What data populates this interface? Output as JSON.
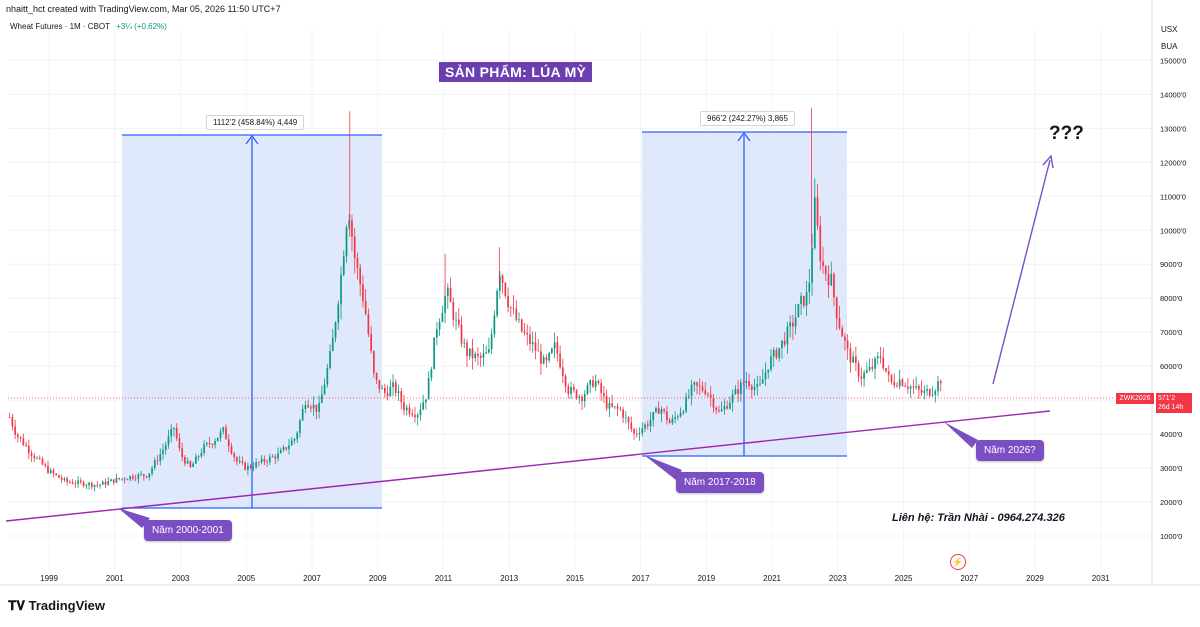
{
  "header": {
    "created_line": "nhaitt_hct created with TradingView.com, Mar 05, 2026 11:50 UTC+7",
    "symbol": "Wheat Futures · 1M · CBOT",
    "change": "+3¼ (+0.62%)",
    "unit_top": "USX",
    "unit_bottom": "BUA"
  },
  "title": "SẢN PHẨM: LÚA MỲ",
  "annotations": {
    "measure_1": "1112’2 (458.84%) 4,449",
    "measure_2": "966’2 (242.27%) 3,865",
    "callout_2000": "Năm 2000-2001",
    "callout_2017": "Năm 2017-2018",
    "callout_2026": "Năm 2026?",
    "question": "???",
    "contact": "Liên hệ: Trần Nhài - 0964.274.326"
  },
  "price_label": {
    "symbol": "ZWK2026",
    "price": "571’2",
    "countdown": "26d 14h"
  },
  "footer": {
    "brand": "TradingView"
  },
  "colors": {
    "up": "#089981",
    "down": "#f23645",
    "zone_fill": "#dbe4fb",
    "zone_border": "#2962ff",
    "trendline": "#9c27b0",
    "callout_bg": "#7b4fc4"
  },
  "chart_data": {
    "type": "candlestick",
    "title": "Wheat Futures · 1M · CBOT",
    "y_axis_ticks": [
      "1000'0",
      "2000'0",
      "3000'0",
      "4000'0",
      "5000'0",
      "6000'0",
      "7000'0",
      "8000'0",
      "9000'0",
      "10000'0",
      "11000'0",
      "12000'0",
      "13000'0",
      "14000'0",
      "15000'0"
    ],
    "x_axis_ticks": [
      "1999",
      "2001",
      "2003",
      "2005",
      "2007",
      "2009",
      "2011",
      "2013",
      "2015",
      "2017",
      "2019",
      "2021",
      "2023",
      "2025",
      "2027",
      "2029",
      "2031"
    ],
    "ylim": [
      0,
      15600
    ],
    "xlim": [
      1997.75,
      2032.5
    ],
    "grid": true,
    "series": [
      {
        "values": [
          [
            1997.8,
            4500
          ],
          [
            1998.0,
            4000
          ],
          [
            1998.5,
            3400
          ],
          [
            1999.0,
            2900
          ],
          [
            1999.5,
            2600
          ],
          [
            2000.0,
            2550
          ],
          [
            2000.5,
            2500
          ],
          [
            2001.0,
            2650
          ],
          [
            2001.5,
            2750
          ],
          [
            2002.0,
            2800
          ],
          [
            2002.5,
            3600
          ],
          [
            2002.8,
            4200
          ],
          [
            2003.0,
            3400
          ],
          [
            2003.3,
            3000
          ],
          [
            2003.7,
            3600
          ],
          [
            2004.0,
            3800
          ],
          [
            2004.3,
            4100
          ],
          [
            2004.7,
            3200
          ],
          [
            2005.0,
            3000
          ],
          [
            2005.5,
            3200
          ],
          [
            2006.0,
            3400
          ],
          [
            2006.5,
            3900
          ],
          [
            2006.8,
            5000
          ],
          [
            2007.2,
            4700
          ],
          [
            2007.6,
            6500
          ],
          [
            2007.9,
            8800
          ],
          [
            2008.1,
            10800
          ],
          [
            2008.3,
            9200
          ],
          [
            2008.6,
            7800
          ],
          [
            2008.9,
            5600
          ],
          [
            2009.2,
            5200
          ],
          [
            2009.5,
            5400
          ],
          [
            2009.8,
            4800
          ],
          [
            2010.2,
            4600
          ],
          [
            2010.5,
            5200
          ],
          [
            2010.8,
            7200
          ],
          [
            2011.1,
            8200
          ],
          [
            2011.4,
            7200
          ],
          [
            2011.7,
            6400
          ],
          [
            2012.1,
            6200
          ],
          [
            2012.4,
            6400
          ],
          [
            2012.7,
            8900
          ],
          [
            2013.0,
            7800
          ],
          [
            2013.4,
            7000
          ],
          [
            2013.8,
            6500
          ],
          [
            2014.1,
            6000
          ],
          [
            2014.4,
            6600
          ],
          [
            2014.8,
            5300
          ],
          [
            2015.2,
            5100
          ],
          [
            2015.6,
            5600
          ],
          [
            2016.0,
            4800
          ],
          [
            2016.4,
            4700
          ],
          [
            2016.8,
            4000
          ],
          [
            2017.2,
            4300
          ],
          [
            2017.6,
            4800
          ],
          [
            2017.9,
            4300
          ],
          [
            2018.3,
            4800
          ],
          [
            2018.6,
            5400
          ],
          [
            2019.0,
            5300
          ],
          [
            2019.4,
            4600
          ],
          [
            2019.8,
            5100
          ],
          [
            2020.2,
            5600
          ],
          [
            2020.6,
            5300
          ],
          [
            2020.9,
            6100
          ],
          [
            2021.2,
            6500
          ],
          [
            2021.6,
            7200
          ],
          [
            2021.9,
            7900
          ],
          [
            2022.1,
            8100
          ],
          [
            2022.3,
            10700
          ],
          [
            2022.5,
            9000
          ],
          [
            2022.8,
            8500
          ],
          [
            2023.0,
            7400
          ],
          [
            2023.3,
            6400
          ],
          [
            2023.7,
            5700
          ],
          [
            2024.0,
            5900
          ],
          [
            2024.3,
            6300
          ],
          [
            2024.6,
            5500
          ],
          [
            2024.9,
            5600
          ],
          [
            2025.2,
            5400
          ],
          [
            2025.6,
            5200
          ],
          [
            2025.9,
            5300
          ],
          [
            2026.2,
            5712
          ]
        ]
      }
    ]
  }
}
